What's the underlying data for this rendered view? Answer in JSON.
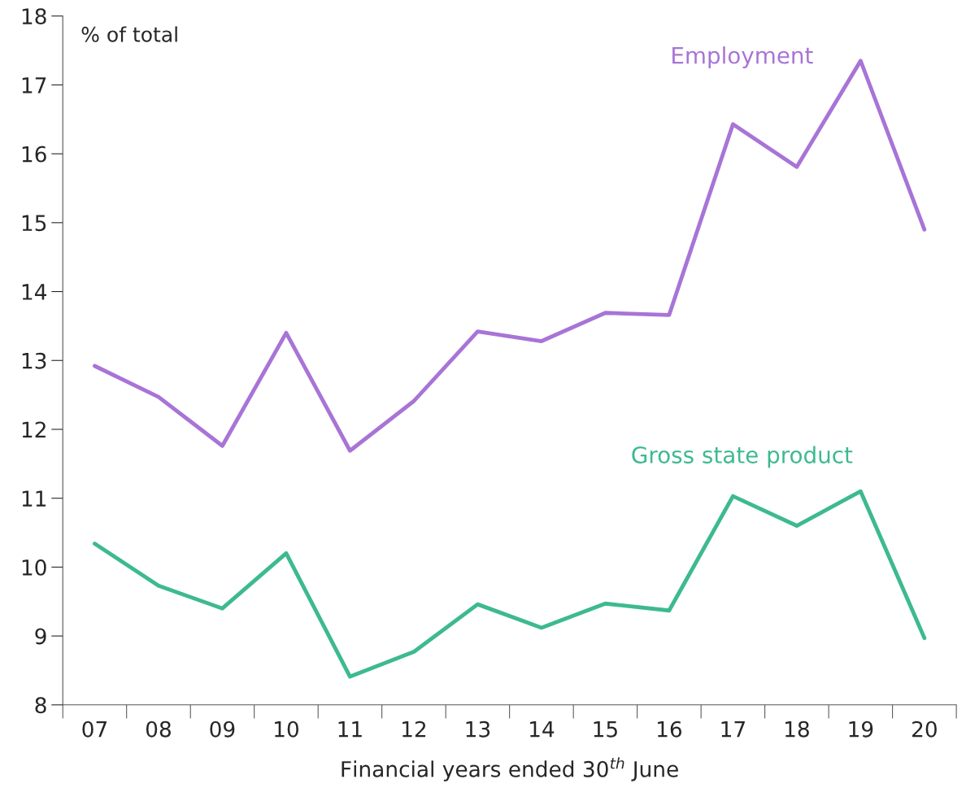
{
  "chart_data": {
    "type": "line",
    "xlabel": "Financial years ended 30$^{th}$ June",
    "ylabel": "% of total",
    "categories": [
      "07",
      "08",
      "09",
      "10",
      "11",
      "12",
      "13",
      "14",
      "15",
      "16",
      "17",
      "18",
      "19",
      "20"
    ],
    "series": [
      {
        "name": "Employment",
        "color": "#a874d6",
        "values": [
          12.92,
          12.47,
          11.76,
          13.4,
          11.69,
          12.41,
          13.42,
          13.28,
          13.69,
          13.66,
          16.43,
          15.81,
          17.35,
          14.9
        ]
      },
      {
        "name": "Gross state product",
        "color": "#3dba8e",
        "values": [
          10.34,
          9.73,
          9.4,
          10.2,
          8.41,
          8.77,
          9.46,
          9.12,
          9.47,
          9.37,
          11.03,
          10.6,
          11.1,
          8.97
        ]
      }
    ],
    "ylim": [
      8,
      18
    ],
    "yticks": [
      8,
      9,
      10,
      11,
      12,
      13,
      14,
      15,
      16,
      17,
      18
    ],
    "grid": false,
    "legend": false,
    "marker": "none",
    "line_style": "solid"
  }
}
